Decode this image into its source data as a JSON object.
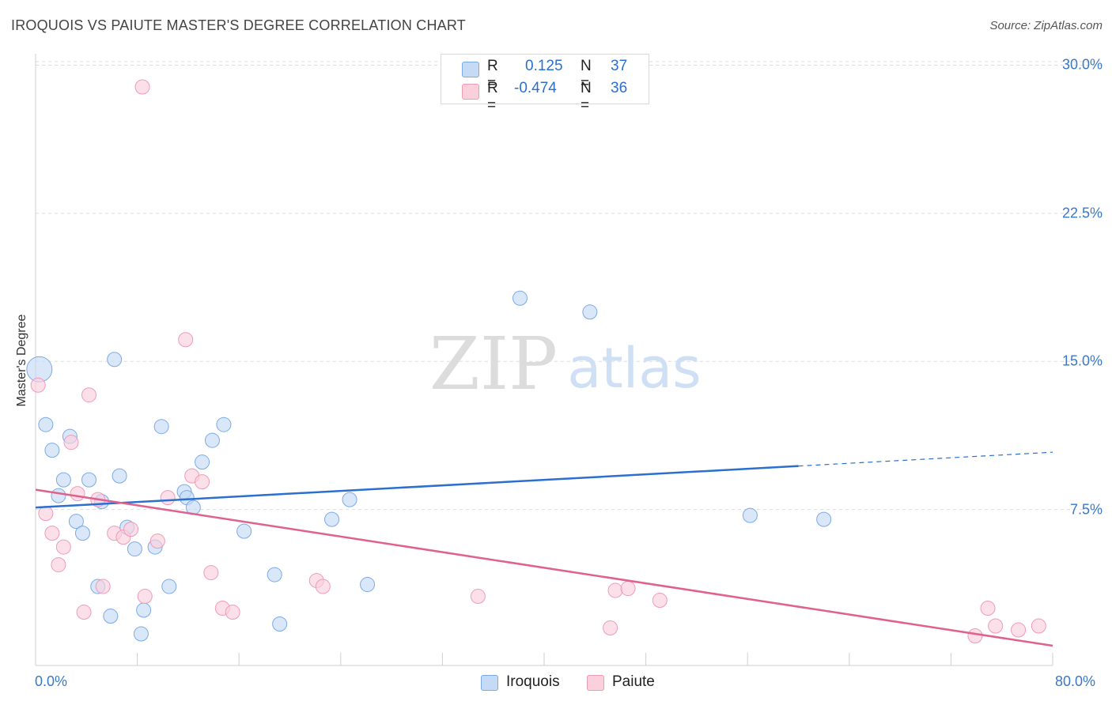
{
  "title": "IROQUOIS VS PAIUTE MASTER'S DEGREE CORRELATION CHART",
  "source": "Source: ZipAtlas.com",
  "watermark": {
    "zip": "ZIP",
    "atlas": "atlas"
  },
  "colors": {
    "iroquois": "#7aaae8",
    "iroquois_fill": "#c5daf5",
    "iroquois_line": "#2b6fcf",
    "paiute": "#f09ab6",
    "paiute_fill": "#fad0dd",
    "paiute_line": "#e0608e",
    "axis_text": "#3a78c9"
  },
  "stats": {
    "iroquois": {
      "r_label": "R =",
      "r_value": "0.125",
      "n_label": "N =",
      "n_value": "37"
    },
    "paiute": {
      "r_label": "R =",
      "r_value": "-0.474",
      "n_label": "N =",
      "n_value": "36"
    }
  },
  "chart_data": {
    "type": "scatter",
    "title": "IROQUOIS VS PAIUTE MASTER'S DEGREE CORRELATION CHART",
    "xlabel": "",
    "ylabel": "Master's Degree",
    "xlim": [
      0,
      80
    ],
    "ylim": [
      0,
      30.5
    ],
    "x_tick_labels": [
      "0.0%",
      "80.0%"
    ],
    "y_ticks": [
      7.5,
      15.0,
      22.5,
      30.0
    ],
    "y_tick_labels": [
      "7.5%",
      "15.0%",
      "22.5%",
      "30.0%"
    ],
    "legend": [
      "Iroquois",
      "Paiute"
    ],
    "series": [
      {
        "name": "Iroquois",
        "r": 0.125,
        "n": 37,
        "trend": {
          "x0": 0,
          "y0": 7.6,
          "x1": 60,
          "y1": 9.7,
          "dashed_to_x": 80,
          "dashed_to_y": 10.4
        },
        "points": [
          [
            0.3,
            14.6,
            16
          ],
          [
            0.8,
            11.8,
            9
          ],
          [
            1.3,
            10.5,
            9
          ],
          [
            1.8,
            8.2,
            9
          ],
          [
            2.2,
            9.0,
            9
          ],
          [
            2.7,
            11.2,
            9
          ],
          [
            3.2,
            6.9,
            9
          ],
          [
            3.7,
            6.3,
            9
          ],
          [
            4.2,
            9.0,
            9
          ],
          [
            4.9,
            3.6,
            9
          ],
          [
            5.2,
            7.9,
            9
          ],
          [
            5.9,
            2.1,
            9
          ],
          [
            6.2,
            15.1,
            9
          ],
          [
            6.6,
            9.2,
            9
          ],
          [
            7.2,
            6.6,
            9
          ],
          [
            7.8,
            5.5,
            9
          ],
          [
            8.3,
            1.2,
            9
          ],
          [
            8.5,
            2.4,
            9
          ],
          [
            9.4,
            5.6,
            9
          ],
          [
            9.9,
            11.7,
            9
          ],
          [
            10.5,
            3.6,
            9
          ],
          [
            11.7,
            8.4,
            9
          ],
          [
            11.9,
            8.1,
            9
          ],
          [
            12.4,
            7.6,
            9
          ],
          [
            13.1,
            9.9,
            9
          ],
          [
            13.9,
            11.0,
            9
          ],
          [
            14.8,
            11.8,
            9
          ],
          [
            16.4,
            6.4,
            9
          ],
          [
            18.8,
            4.2,
            9
          ],
          [
            19.2,
            1.7,
            9
          ],
          [
            23.3,
            7.0,
            9
          ],
          [
            24.7,
            8.0,
            9
          ],
          [
            26.1,
            3.7,
            9
          ],
          [
            38.1,
            18.2,
            9
          ],
          [
            43.6,
            17.5,
            9
          ],
          [
            56.2,
            7.2,
            9
          ],
          [
            62.0,
            7.0,
            9
          ]
        ]
      },
      {
        "name": "Paiute",
        "r": -0.474,
        "n": 36,
        "trend": {
          "x0": 0,
          "y0": 8.5,
          "x1": 80,
          "y1": 0.6
        },
        "points": [
          [
            0.2,
            13.8,
            9
          ],
          [
            0.8,
            7.3,
            9
          ],
          [
            1.3,
            6.3,
            9
          ],
          [
            1.8,
            4.7,
            9
          ],
          [
            2.2,
            5.6,
            9
          ],
          [
            2.8,
            10.9,
            9
          ],
          [
            3.3,
            8.3,
            9
          ],
          [
            3.8,
            2.3,
            9
          ],
          [
            4.2,
            13.3,
            9
          ],
          [
            4.9,
            8.0,
            9
          ],
          [
            5.3,
            3.6,
            9
          ],
          [
            6.2,
            6.3,
            9
          ],
          [
            6.9,
            6.1,
            9
          ],
          [
            7.5,
            6.5,
            9
          ],
          [
            8.4,
            28.9,
            9
          ],
          [
            8.6,
            3.1,
            9
          ],
          [
            9.6,
            5.9,
            9
          ],
          [
            10.4,
            8.1,
            9
          ],
          [
            11.8,
            16.1,
            9
          ],
          [
            12.3,
            9.2,
            9
          ],
          [
            13.1,
            8.9,
            9
          ],
          [
            13.8,
            4.3,
            9
          ],
          [
            14.7,
            2.5,
            9
          ],
          [
            15.5,
            2.3,
            9
          ],
          [
            22.1,
            3.9,
            9
          ],
          [
            22.6,
            3.6,
            9
          ],
          [
            34.8,
            3.1,
            9
          ],
          [
            45.2,
            1.5,
            9
          ],
          [
            45.6,
            3.4,
            9
          ],
          [
            46.6,
            3.5,
            9
          ],
          [
            49.1,
            2.9,
            9
          ],
          [
            73.9,
            1.1,
            9
          ],
          [
            74.9,
            2.5,
            9
          ],
          [
            75.5,
            1.6,
            9
          ],
          [
            77.3,
            1.4,
            9
          ],
          [
            78.9,
            1.6,
            9
          ]
        ]
      }
    ]
  }
}
